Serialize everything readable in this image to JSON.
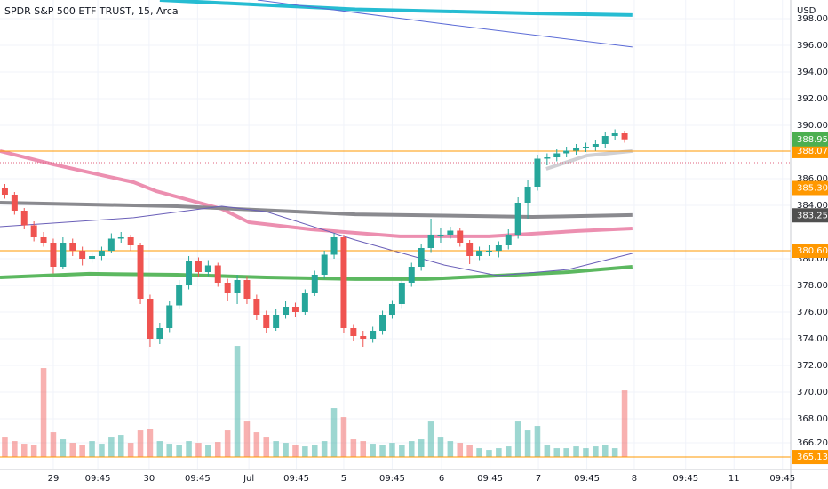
{
  "chart_data": {
    "type": "candlestick",
    "title": "SPDR S&P 500 ETF TRUST, 15, Arca",
    "currency": "USD",
    "up_color": "#26a69a",
    "down_color": "#ef5350",
    "grid": true,
    "xlim": [
      -0.5,
      81.15
    ],
    "xticks": [
      {
        "value": 5,
        "label": "29"
      },
      {
        "value": 9.6,
        "label": "09:45"
      },
      {
        "value": 14.9,
        "label": "30"
      },
      {
        "value": 19.9,
        "label": "09:45"
      },
      {
        "value": 25.2,
        "label": "Jul"
      },
      {
        "value": 30.1,
        "label": "09:45"
      },
      {
        "value": 35,
        "label": "5"
      },
      {
        "value": 40,
        "label": "09:45"
      },
      {
        "value": 45.1,
        "label": "6"
      },
      {
        "value": 50.1,
        "label": "09:45"
      },
      {
        "value": 55.1,
        "label": "7"
      },
      {
        "value": 60.1,
        "label": "09:45"
      },
      {
        "value": 65,
        "label": "8"
      },
      {
        "value": 70.3,
        "label": "09:45"
      },
      {
        "value": 75.3,
        "label": "11"
      },
      {
        "value": 80.3,
        "label": "09:45"
      }
    ],
    "ylim": [
      364.2,
      399.4
    ],
    "yticks": [
      {
        "value": 398,
        "label": "398.00"
      },
      {
        "value": 396,
        "label": "396.00"
      },
      {
        "value": 394,
        "label": "394.00"
      },
      {
        "value": 392,
        "label": "392.00"
      },
      {
        "value": 390,
        "label": "390.00"
      },
      {
        "value": 386,
        "label": "386.00"
      },
      {
        "value": 384,
        "label": "384.00"
      },
      {
        "value": 380,
        "label": "380.00"
      },
      {
        "value": 378,
        "label": "378.00"
      },
      {
        "value": 376,
        "label": "376.00"
      },
      {
        "value": 374,
        "label": "374.00"
      },
      {
        "value": 372,
        "label": "372.00"
      },
      {
        "value": 370,
        "label": "370.00"
      },
      {
        "value": 368,
        "label": "368.00"
      },
      {
        "value": 366.2,
        "label": "366.20"
      }
    ],
    "open": [
      385.3,
      384.8,
      383.6,
      382.5,
      381.6,
      381.2,
      379.4,
      381.2,
      380.6,
      380.0,
      380.2,
      380.6,
      381.5,
      381.6,
      381.0,
      377.0,
      374.0,
      374.8,
      376.5,
      378.0,
      379.8,
      379.0,
      379.5,
      378.2,
      377.4,
      378.4,
      377.0,
      375.8,
      374.8,
      375.8,
      376.4,
      376.0,
      377.4,
      378.8,
      380.3,
      381.6,
      374.8,
      374.2,
      374.0,
      374.6,
      375.8,
      376.6,
      378.2,
      379.4,
      380.8,
      381.8,
      381.8,
      382.1,
      381.2,
      380.2,
      380.6,
      380.6,
      381.0,
      381.8,
      384.2,
      385.4,
      387.5,
      387.6,
      387.9,
      388.1,
      388.3,
      388.4,
      388.6,
      389.2,
      389.4
    ],
    "high": [
      385.6,
      385.0,
      383.8,
      382.8,
      382.0,
      381.5,
      381.6,
      381.5,
      380.9,
      380.5,
      380.9,
      381.9,
      382.0,
      381.8,
      381.2,
      377.3,
      375.2,
      376.8,
      378.4,
      380.2,
      380.1,
      379.9,
      379.7,
      378.5,
      378.8,
      378.7,
      377.3,
      376.1,
      376.2,
      376.8,
      376.7,
      377.7,
      379.1,
      380.6,
      381.9,
      381.8,
      375.1,
      374.6,
      374.9,
      376.1,
      376.9,
      378.5,
      379.7,
      381.1,
      383.0,
      382.3,
      382.4,
      382.3,
      381.4,
      380.9,
      381.0,
      381.3,
      382.2,
      384.6,
      385.9,
      387.8,
      387.9,
      388.2,
      388.4,
      388.6,
      388.7,
      388.9,
      389.5,
      389.7,
      389.6
    ],
    "low": [
      384.5,
      383.3,
      382.2,
      381.3,
      380.9,
      378.9,
      379.2,
      380.2,
      379.5,
      379.7,
      379.9,
      380.4,
      381.2,
      380.6,
      376.6,
      373.4,
      373.6,
      374.5,
      376.2,
      377.7,
      378.6,
      378.7,
      377.9,
      376.8,
      376.6,
      376.6,
      375.4,
      374.4,
      374.6,
      375.5,
      375.6,
      375.8,
      377.2,
      378.5,
      380.0,
      374.4,
      373.8,
      373.4,
      373.7,
      374.3,
      375.5,
      376.3,
      377.9,
      379.1,
      380.5,
      381.2,
      381.5,
      380.9,
      379.6,
      379.9,
      380.2,
      380.1,
      380.7,
      381.5,
      383.0,
      385.1,
      387.0,
      387.3,
      387.6,
      387.8,
      388.0,
      388.1,
      388.3,
      388.9,
      388.7
    ],
    "close": [
      384.8,
      383.6,
      382.5,
      381.6,
      381.2,
      379.4,
      381.2,
      380.6,
      380.0,
      380.2,
      380.6,
      381.5,
      381.6,
      381.0,
      377.0,
      374.0,
      374.8,
      376.5,
      378.0,
      379.8,
      379.0,
      379.5,
      378.2,
      377.4,
      378.4,
      377.0,
      375.8,
      374.8,
      375.8,
      376.4,
      376.0,
      377.4,
      378.8,
      380.3,
      381.6,
      374.8,
      374.2,
      374.0,
      374.6,
      375.8,
      376.6,
      378.2,
      379.4,
      380.8,
      381.8,
      381.8,
      382.1,
      381.2,
      380.2,
      380.6,
      380.6,
      381.0,
      381.8,
      384.2,
      385.4,
      387.5,
      387.6,
      387.9,
      388.1,
      388.3,
      388.4,
      388.6,
      389.2,
      389.4,
      388.95
    ],
    "volume": [
      22,
      18,
      15,
      14,
      100,
      28,
      20,
      16,
      14,
      18,
      15,
      22,
      25,
      16,
      30,
      32,
      18,
      15,
      14,
      18,
      16,
      14,
      17,
      30,
      125,
      40,
      28,
      22,
      18,
      16,
      14,
      12,
      14,
      18,
      55,
      45,
      20,
      18,
      15,
      14,
      16,
      14,
      18,
      20,
      40,
      22,
      18,
      16,
      14,
      10,
      8,
      10,
      12,
      40,
      30,
      35,
      14,
      10,
      10,
      12,
      10,
      12,
      14,
      10,
      75
    ],
    "lines": [
      {
        "color": "#26bcd2",
        "width": 4,
        "x": [
          16.0,
          36.2,
          54.5,
          64.8
        ],
        "values": [
          399.4,
          398.7,
          398.4,
          398.27
        ]
      },
      {
        "color": "#5b6bd6",
        "width": 1,
        "x": [
          26.1,
          45.4,
          64.8
        ],
        "values": [
          399.4,
          397.6,
          395.87
        ]
      },
      {
        "color": "#ec8fb0",
        "width": 4,
        "x": [
          -0.5,
          5.0,
          13.3,
          15.6,
          22.4,
          25.2,
          31.6,
          40.8,
          50.0,
          59.1,
          64.8
        ],
        "values": [
          388.07,
          387.07,
          385.73,
          385.07,
          383.73,
          382.73,
          382.2,
          381.67,
          381.67,
          382.07,
          382.27
        ]
      },
      {
        "color": "#8a8a8f",
        "width": 4,
        "x": [
          -0.5,
          17.8,
          36.2,
          54.5,
          64.8
        ],
        "values": [
          384.2,
          383.93,
          383.33,
          383.13,
          383.27
        ]
      },
      {
        "color": "#5cb860",
        "width": 4,
        "x": [
          -0.5,
          8.7,
          17.8,
          27.0,
          36.2,
          43.5,
          50.9,
          58.2,
          64.8
        ],
        "values": [
          378.6,
          378.87,
          378.8,
          378.6,
          378.47,
          378.47,
          378.73,
          379.0,
          379.4
        ]
      },
      {
        "color": "#6a5fb8",
        "width": 1,
        "x": [
          -0.5,
          13.3,
          22.4,
          27.0,
          36.2,
          45.4,
          50.9,
          58.2,
          64.8
        ],
        "values": [
          382.4,
          383.07,
          383.93,
          383.53,
          381.4,
          379.53,
          378.73,
          379.2,
          380.4
        ]
      },
      {
        "color": "#d0d0d4",
        "width": 4,
        "x": [
          55.9,
          60.1,
          64.8
        ],
        "values": [
          386.73,
          387.73,
          388.07
        ]
      }
    ],
    "price_lines": [
      {
        "value": 388.07,
        "label": "388.07"
      },
      {
        "value": 385.3,
        "label": "385.30"
      },
      {
        "value": 380.6,
        "label": "380.60"
      },
      {
        "value": 365.13,
        "label": "365.13"
      }
    ],
    "level_color": "#ff9800",
    "dotted_line": 387.2,
    "last_price": {
      "value": 388.95,
      "label": "388.95",
      "color": "#4caf50"
    },
    "ma_price": {
      "value": 383.25,
      "label": "383.25",
      "color": "#505050"
    }
  }
}
